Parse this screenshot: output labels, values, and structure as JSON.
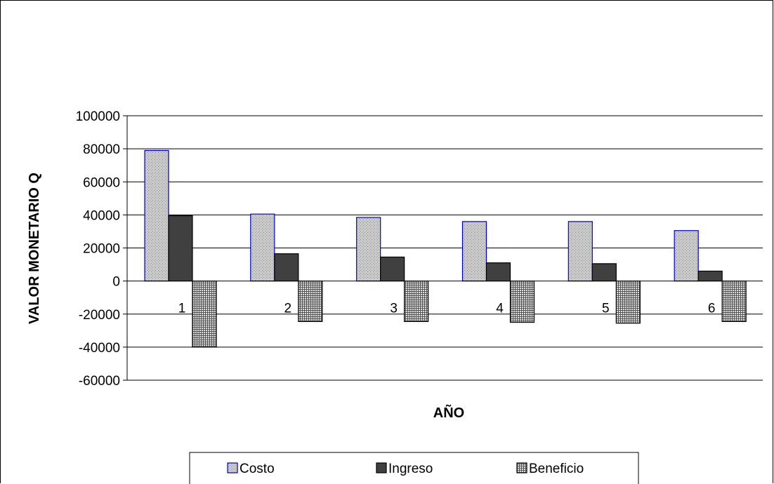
{
  "chart_data": {
    "type": "bar",
    "title": "",
    "xlabel": "AÑO",
    "ylabel": "VALOR MONETARIO Q",
    "categories": [
      "1",
      "2",
      "3",
      "4",
      "5",
      "6"
    ],
    "ylim": [
      -60000,
      100000
    ],
    "yticks": [
      100000,
      80000,
      60000,
      40000,
      20000,
      0,
      -20000,
      -40000,
      -60000
    ],
    "grid": true,
    "legend_position": "bottom",
    "series": [
      {
        "name": "Costo",
        "values": [
          79000,
          40500,
          38500,
          36000,
          36000,
          30500
        ],
        "fill": "#c8c8c8",
        "stroke": "#0000cc"
      },
      {
        "name": "Ingreso",
        "values": [
          39500,
          16500,
          14500,
          11000,
          10500,
          6000
        ],
        "fill": "#404040",
        "stroke": "#000000"
      },
      {
        "name": "Beneficio",
        "values": [
          -40000,
          -24500,
          -24500,
          -25000,
          -25500,
          -24500
        ],
        "fill": "#a8a8a8",
        "stroke": "#000000"
      }
    ]
  }
}
